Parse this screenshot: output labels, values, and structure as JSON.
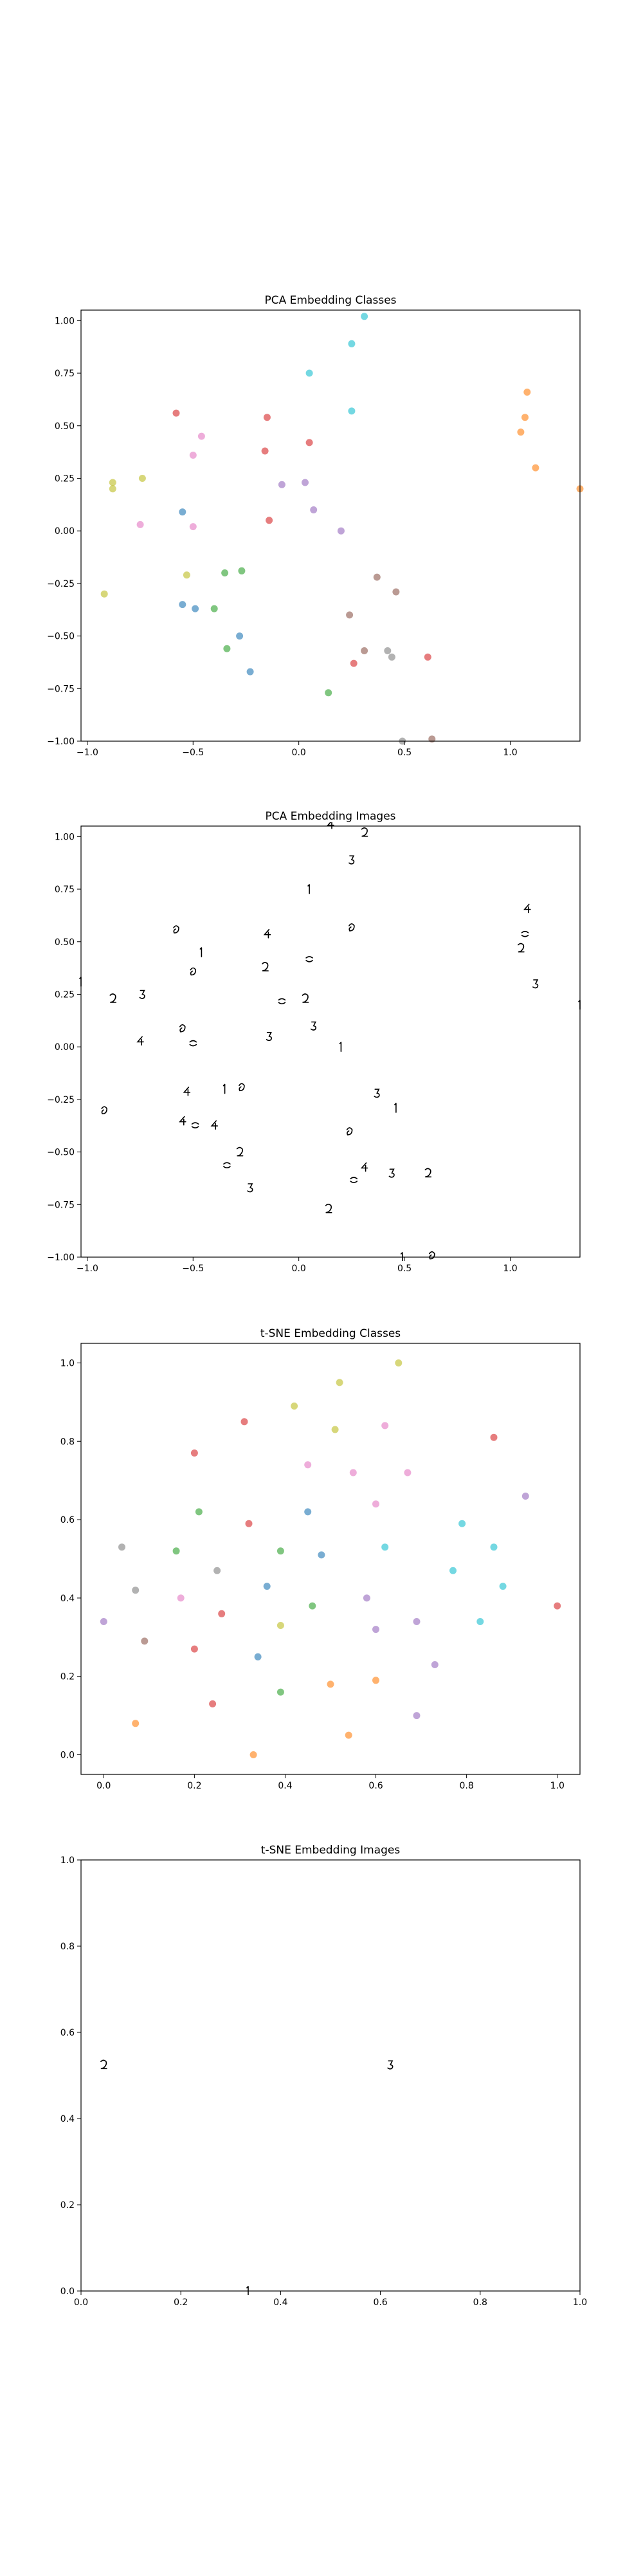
{
  "chart_data": [
    {
      "id": "pca-classes",
      "type": "scatter",
      "title": "PCA Embedding Classes",
      "xlabel": "",
      "ylabel": "",
      "xlim": [
        -1.03,
        1.33
      ],
      "ylim": [
        -1.0,
        1.05
      ],
      "xticks": [
        -1.0,
        -0.5,
        0.0,
        0.5,
        1.0
      ],
      "xtick_labels": [
        "−1.0",
        "−0.5",
        "0.0",
        "0.5",
        "1.0"
      ],
      "yticks": [
        -1.0,
        -0.75,
        -0.5,
        -0.25,
        0.0,
        0.25,
        0.5,
        0.75,
        1.0
      ],
      "ytick_labels": [
        "−1.00",
        "−0.75",
        "−0.50",
        "−0.25",
        "0.00",
        "0.25",
        "0.50",
        "0.75",
        "1.00"
      ],
      "grid": false,
      "points": [
        {
          "x": 0.31,
          "y": 1.02,
          "color": "#17becf"
        },
        {
          "x": 0.25,
          "y": 0.89,
          "color": "#17becf"
        },
        {
          "x": 0.05,
          "y": 0.75,
          "color": "#17becf"
        },
        {
          "x": 0.25,
          "y": 0.57,
          "color": "#17becf"
        },
        {
          "x": 1.08,
          "y": 0.66,
          "color": "#ff7f0e"
        },
        {
          "x": 1.07,
          "y": 0.54,
          "color": "#ff7f0e"
        },
        {
          "x": 1.05,
          "y": 0.47,
          "color": "#ff7f0e"
        },
        {
          "x": 1.12,
          "y": 0.3,
          "color": "#ff7f0e"
        },
        {
          "x": 1.33,
          "y": 0.2,
          "color": "#ff7f0e"
        },
        {
          "x": -0.58,
          "y": 0.56,
          "color": "#d62728"
        },
        {
          "x": -0.15,
          "y": 0.54,
          "color": "#d62728"
        },
        {
          "x": 0.05,
          "y": 0.42,
          "color": "#d62728"
        },
        {
          "x": -0.16,
          "y": 0.38,
          "color": "#d62728"
        },
        {
          "x": -0.14,
          "y": 0.05,
          "color": "#d62728"
        },
        {
          "x": -0.46,
          "y": 0.45,
          "color": "#e377c2"
        },
        {
          "x": -0.5,
          "y": 0.36,
          "color": "#e377c2"
        },
        {
          "x": -0.75,
          "y": 0.03,
          "color": "#e377c2"
        },
        {
          "x": -0.5,
          "y": 0.02,
          "color": "#e377c2"
        },
        {
          "x": -0.88,
          "y": 0.23,
          "color": "#bcbd22"
        },
        {
          "x": -0.88,
          "y": 0.2,
          "color": "#bcbd22"
        },
        {
          "x": -0.74,
          "y": 0.25,
          "color": "#bcbd22"
        },
        {
          "x": -0.92,
          "y": -0.3,
          "color": "#bcbd22"
        },
        {
          "x": -0.53,
          "y": -0.21,
          "color": "#bcbd22"
        },
        {
          "x": -0.08,
          "y": 0.22,
          "color": "#9467bd"
        },
        {
          "x": 0.03,
          "y": 0.23,
          "color": "#9467bd"
        },
        {
          "x": 0.07,
          "y": 0.1,
          "color": "#9467bd"
        },
        {
          "x": 0.2,
          "y": 0.0,
          "color": "#9467bd"
        },
        {
          "x": -0.55,
          "y": 0.09,
          "color": "#1f77b4"
        },
        {
          "x": -0.55,
          "y": -0.35,
          "color": "#1f77b4"
        },
        {
          "x": -0.49,
          "y": -0.37,
          "color": "#1f77b4"
        },
        {
          "x": -0.28,
          "y": -0.5,
          "color": "#1f77b4"
        },
        {
          "x": -0.23,
          "y": -0.67,
          "color": "#1f77b4"
        },
        {
          "x": -0.35,
          "y": -0.2,
          "color": "#2ca02c"
        },
        {
          "x": -0.27,
          "y": -0.19,
          "color": "#2ca02c"
        },
        {
          "x": -0.4,
          "y": -0.37,
          "color": "#2ca02c"
        },
        {
          "x": -0.34,
          "y": -0.56,
          "color": "#2ca02c"
        },
        {
          "x": 0.14,
          "y": -0.77,
          "color": "#2ca02c"
        },
        {
          "x": 0.37,
          "y": -0.22,
          "color": "#8c564b"
        },
        {
          "x": 0.46,
          "y": -0.29,
          "color": "#8c564b"
        },
        {
          "x": 0.24,
          "y": -0.4,
          "color": "#8c564b"
        },
        {
          "x": 0.31,
          "y": -0.57,
          "color": "#8c564b"
        },
        {
          "x": 0.26,
          "y": -0.63,
          "color": "#d62728"
        },
        {
          "x": 0.61,
          "y": -0.6,
          "color": "#d62728"
        },
        {
          "x": 0.42,
          "y": -0.57,
          "color": "#7f7f7f"
        },
        {
          "x": 0.44,
          "y": -0.6,
          "color": "#7f7f7f"
        },
        {
          "x": 0.49,
          "y": -1.0,
          "color": "#7f7f7f"
        },
        {
          "x": 0.63,
          "y": -0.99,
          "color": "#8c564b"
        }
      ]
    },
    {
      "id": "pca-images",
      "type": "scatter",
      "marker": "image",
      "title": "PCA Embedding Images",
      "xlabel": "",
      "ylabel": "",
      "xlim": [
        -1.03,
        1.33
      ],
      "ylim": [
        -1.0,
        1.05
      ],
      "xticks": [
        -1.0,
        -0.5,
        0.0,
        0.5,
        1.0
      ],
      "xtick_labels": [
        "−1.0",
        "−0.5",
        "0.0",
        "0.5",
        "1.0"
      ],
      "yticks": [
        -1.0,
        -0.75,
        -0.5,
        -0.25,
        0.0,
        0.25,
        0.5,
        0.75,
        1.0
      ],
      "ytick_labels": [
        "−1.00",
        "−0.75",
        "−0.50",
        "−0.25",
        "0.00",
        "0.25",
        "0.50",
        "0.75",
        "1.00"
      ],
      "grid": false,
      "points": [
        {
          "x": 0.31,
          "y": 1.02
        },
        {
          "x": 0.25,
          "y": 0.89
        },
        {
          "x": 0.05,
          "y": 0.75
        },
        {
          "x": 0.25,
          "y": 0.57
        },
        {
          "x": 1.08,
          "y": 0.66
        },
        {
          "x": 1.07,
          "y": 0.54
        },
        {
          "x": 1.05,
          "y": 0.47
        },
        {
          "x": 1.12,
          "y": 0.3
        },
        {
          "x": 1.33,
          "y": 0.2
        },
        {
          "x": -0.58,
          "y": 0.56
        },
        {
          "x": -0.15,
          "y": 0.54
        },
        {
          "x": 0.05,
          "y": 0.42
        },
        {
          "x": -0.16,
          "y": 0.38
        },
        {
          "x": -0.14,
          "y": 0.05
        },
        {
          "x": -0.46,
          "y": 0.45
        },
        {
          "x": -0.5,
          "y": 0.36
        },
        {
          "x": -0.75,
          "y": 0.03
        },
        {
          "x": -0.5,
          "y": 0.02
        },
        {
          "x": -0.88,
          "y": 0.23
        },
        {
          "x": -0.74,
          "y": 0.25
        },
        {
          "x": -1.03,
          "y": 0.31
        },
        {
          "x": -0.92,
          "y": -0.3
        },
        {
          "x": -0.53,
          "y": -0.21
        },
        {
          "x": -0.08,
          "y": 0.22
        },
        {
          "x": 0.03,
          "y": 0.23
        },
        {
          "x": 0.07,
          "y": 0.1
        },
        {
          "x": 0.2,
          "y": 0.0
        },
        {
          "x": -0.55,
          "y": 0.09
        },
        {
          "x": -0.55,
          "y": -0.35
        },
        {
          "x": -0.49,
          "y": -0.37
        },
        {
          "x": -0.28,
          "y": -0.5
        },
        {
          "x": -0.23,
          "y": -0.67
        },
        {
          "x": -0.35,
          "y": -0.2
        },
        {
          "x": -0.27,
          "y": -0.19
        },
        {
          "x": -0.4,
          "y": -0.37
        },
        {
          "x": -0.34,
          "y": -0.56
        },
        {
          "x": 0.14,
          "y": -0.77
        },
        {
          "x": 0.37,
          "y": -0.22
        },
        {
          "x": 0.46,
          "y": -0.29
        },
        {
          "x": 0.24,
          "y": -0.4
        },
        {
          "x": 0.31,
          "y": -0.57
        },
        {
          "x": 0.26,
          "y": -0.63
        },
        {
          "x": 0.61,
          "y": -0.6
        },
        {
          "x": 0.44,
          "y": -0.6
        },
        {
          "x": 0.49,
          "y": -1.0
        },
        {
          "x": 0.63,
          "y": -0.99
        },
        {
          "x": 0.15,
          "y": 1.06
        }
      ]
    },
    {
      "id": "tsne-classes",
      "type": "scatter",
      "title": "t-SNE Embedding Classes",
      "xlabel": "",
      "ylabel": "",
      "xlim": [
        -0.05,
        1.05
      ],
      "ylim": [
        -0.05,
        1.05
      ],
      "xticks": [
        0.0,
        0.2,
        0.4,
        0.6,
        0.8,
        1.0
      ],
      "xtick_labels": [
        "0.0",
        "0.2",
        "0.4",
        "0.6",
        "0.8",
        "1.0"
      ],
      "yticks": [
        0.0,
        0.2,
        0.4,
        0.6,
        0.8,
        1.0
      ],
      "ytick_labels": [
        "0.0",
        "0.2",
        "0.4",
        "0.6",
        "0.8",
        "1.0"
      ],
      "grid": false,
      "points": [
        {
          "x": 0.65,
          "y": 1.0,
          "color": "#bcbd22"
        },
        {
          "x": 0.52,
          "y": 0.95,
          "color": "#bcbd22"
        },
        {
          "x": 0.42,
          "y": 0.89,
          "color": "#bcbd22"
        },
        {
          "x": 0.51,
          "y": 0.83,
          "color": "#bcbd22"
        },
        {
          "x": 0.39,
          "y": 0.33,
          "color": "#bcbd22"
        },
        {
          "x": 0.31,
          "y": 0.85,
          "color": "#d62728"
        },
        {
          "x": 0.2,
          "y": 0.77,
          "color": "#d62728"
        },
        {
          "x": 0.32,
          "y": 0.59,
          "color": "#d62728"
        },
        {
          "x": 0.86,
          "y": 0.81,
          "color": "#d62728"
        },
        {
          "x": 1.0,
          "y": 0.38,
          "color": "#d62728"
        },
        {
          "x": 0.2,
          "y": 0.27,
          "color": "#d62728"
        },
        {
          "x": 0.26,
          "y": 0.36,
          "color": "#d62728"
        },
        {
          "x": 0.24,
          "y": 0.13,
          "color": "#d62728"
        },
        {
          "x": 0.45,
          "y": 0.74,
          "color": "#e377c2"
        },
        {
          "x": 0.62,
          "y": 0.84,
          "color": "#e377c2"
        },
        {
          "x": 0.55,
          "y": 0.72,
          "color": "#e377c2"
        },
        {
          "x": 0.67,
          "y": 0.72,
          "color": "#e377c2"
        },
        {
          "x": 0.6,
          "y": 0.64,
          "color": "#e377c2"
        },
        {
          "x": 0.17,
          "y": 0.4,
          "color": "#e377c2"
        },
        {
          "x": 0.21,
          "y": 0.62,
          "color": "#2ca02c"
        },
        {
          "x": 0.16,
          "y": 0.52,
          "color": "#2ca02c"
        },
        {
          "x": 0.39,
          "y": 0.52,
          "color": "#2ca02c"
        },
        {
          "x": 0.46,
          "y": 0.38,
          "color": "#2ca02c"
        },
        {
          "x": 0.39,
          "y": 0.16,
          "color": "#2ca02c"
        },
        {
          "x": 0.45,
          "y": 0.62,
          "color": "#1f77b4"
        },
        {
          "x": 0.36,
          "y": 0.43,
          "color": "#1f77b4"
        },
        {
          "x": 0.48,
          "y": 0.51,
          "color": "#1f77b4"
        },
        {
          "x": 0.34,
          "y": 0.25,
          "color": "#1f77b4"
        },
        {
          "x": 0.62,
          "y": 0.53,
          "color": "#17becf"
        },
        {
          "x": 0.79,
          "y": 0.59,
          "color": "#17becf"
        },
        {
          "x": 0.77,
          "y": 0.47,
          "color": "#17becf"
        },
        {
          "x": 0.86,
          "y": 0.53,
          "color": "#17becf"
        },
        {
          "x": 0.88,
          "y": 0.43,
          "color": "#17becf"
        },
        {
          "x": 0.83,
          "y": 0.34,
          "color": "#17becf"
        },
        {
          "x": 0.93,
          "y": 0.66,
          "color": "#9467bd"
        },
        {
          "x": 0.58,
          "y": 0.4,
          "color": "#9467bd"
        },
        {
          "x": 0.6,
          "y": 0.32,
          "color": "#9467bd"
        },
        {
          "x": 0.69,
          "y": 0.34,
          "color": "#9467bd"
        },
        {
          "x": 0.73,
          "y": 0.23,
          "color": "#9467bd"
        },
        {
          "x": 0.69,
          "y": 0.1,
          "color": "#9467bd"
        },
        {
          "x": 0.0,
          "y": 0.34,
          "color": "#9467bd"
        },
        {
          "x": 0.04,
          "y": 0.53,
          "color": "#7f7f7f"
        },
        {
          "x": 0.07,
          "y": 0.42,
          "color": "#7f7f7f"
        },
        {
          "x": 0.25,
          "y": 0.47,
          "color": "#7f7f7f"
        },
        {
          "x": 0.09,
          "y": 0.29,
          "color": "#8c564b"
        },
        {
          "x": 0.07,
          "y": 0.08,
          "color": "#ff7f0e"
        },
        {
          "x": 0.33,
          "y": 0.0,
          "color": "#ff7f0e"
        },
        {
          "x": 0.5,
          "y": 0.18,
          "color": "#ff7f0e"
        },
        {
          "x": 0.6,
          "y": 0.19,
          "color": "#ff7f0e"
        },
        {
          "x": 0.54,
          "y": 0.05,
          "color": "#ff7f0e"
        }
      ]
    },
    {
      "id": "tsne-images",
      "type": "scatter",
      "marker": "image",
      "title": "t-SNE Embedding Images",
      "xlabel": "",
      "ylabel": "",
      "xlim": [
        0.0,
        1.0
      ],
      "ylim": [
        0.0,
        1.0
      ],
      "xticks": [
        0.0,
        0.2,
        0.4,
        0.6,
        0.8,
        1.0
      ],
      "xtick_labels": [
        "0.0",
        "0.2",
        "0.4",
        "0.6",
        "0.8",
        "1.0"
      ],
      "yticks": [
        0.0,
        0.2,
        0.4,
        0.6,
        0.8,
        1.0
      ],
      "ytick_labels": [
        "0.0",
        "0.2",
        "0.4",
        "0.6",
        "0.8",
        "1.0"
      ],
      "grid": false,
      "points": [
        {
          "x": 0.045,
          "y": 0.525
        },
        {
          "x": 0.62,
          "y": 0.525
        },
        {
          "x": 0.335,
          "y": 0.0
        }
      ]
    }
  ]
}
